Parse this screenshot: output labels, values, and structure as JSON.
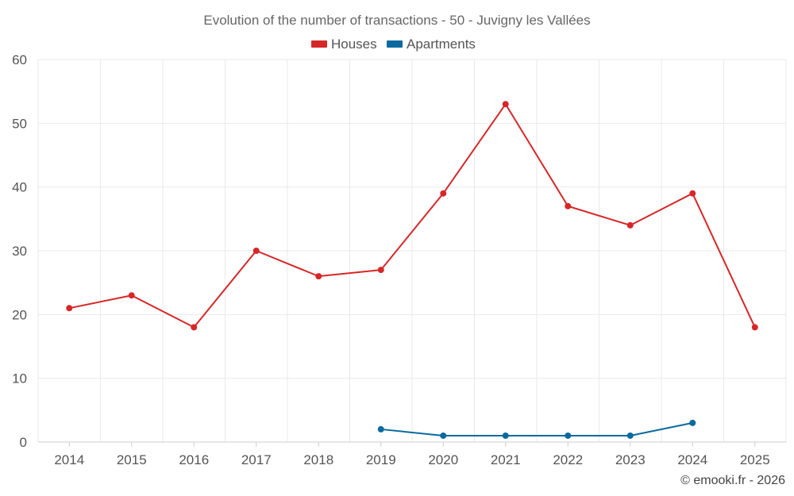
{
  "chart_data": {
    "type": "line",
    "title": "Evolution of the number of transactions - 50 - Juvigny les Vallées",
    "categories": [
      "2014",
      "2015",
      "2016",
      "2017",
      "2018",
      "2019",
      "2020",
      "2021",
      "2022",
      "2023",
      "2024",
      "2025"
    ],
    "ylim": [
      0,
      60
    ],
    "yticks": [
      0,
      10,
      20,
      30,
      40,
      50,
      60
    ],
    "grid": true,
    "legend_position": "top-center",
    "series": [
      {
        "name": "Houses",
        "color": "#d62728",
        "values": [
          21,
          23,
          18,
          30,
          26,
          27,
          39,
          53,
          37,
          34,
          39,
          18
        ]
      },
      {
        "name": "Apartments",
        "color": "#0a6a9e",
        "values": [
          null,
          null,
          null,
          null,
          null,
          2,
          1,
          1,
          1,
          1,
          3,
          null
        ]
      }
    ]
  },
  "credit": "© emooki.fr - 2026"
}
